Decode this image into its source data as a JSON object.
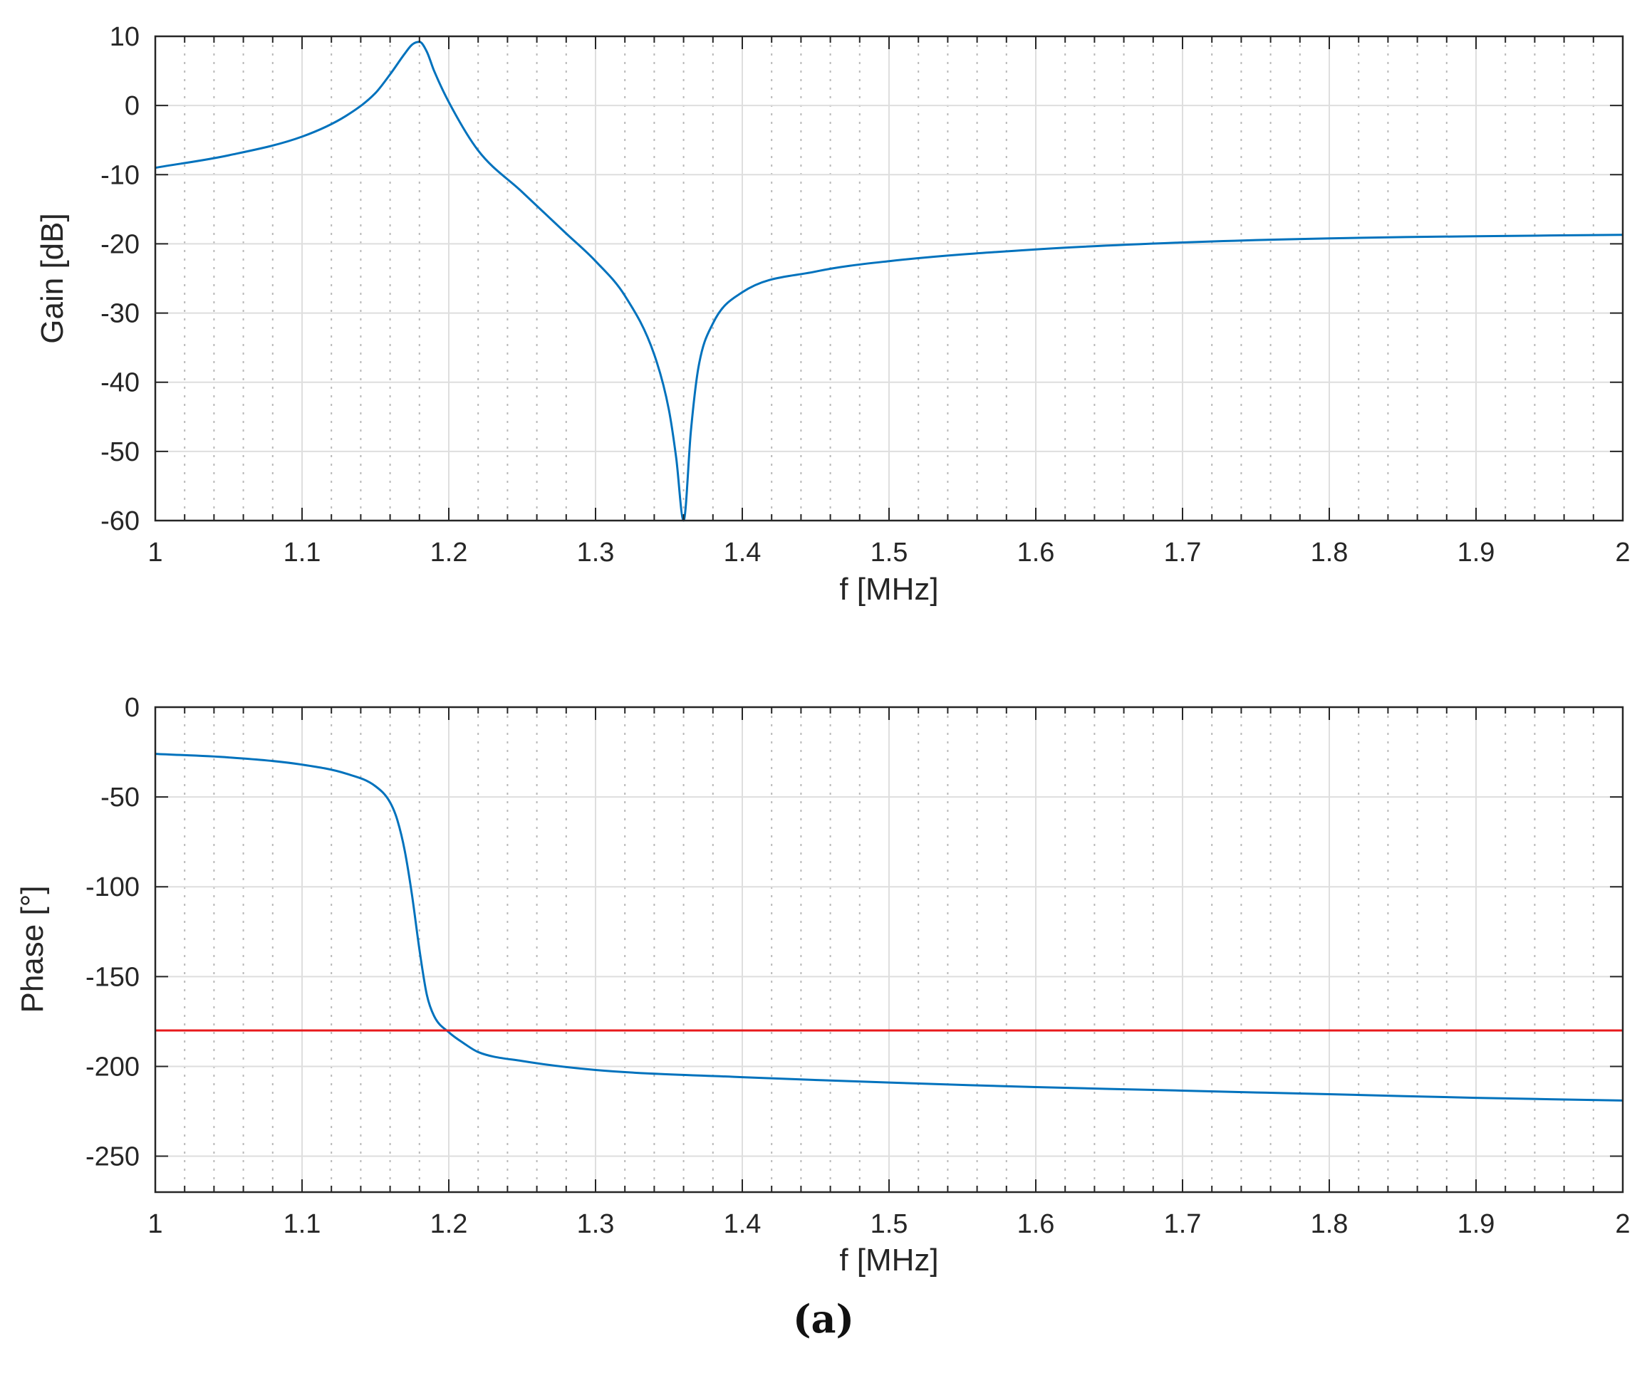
{
  "caption": "(a)",
  "colors": {
    "curve": "#0072bd",
    "reference": "#e8191c",
    "major_grid": "#dedede",
    "minor_grid": "#b8b8b8",
    "axes": "#262626"
  },
  "chart_data": [
    {
      "type": "line",
      "xlabel": "f [MHz]",
      "ylabel": "Gain [dB]",
      "xlim": [
        1,
        2
      ],
      "ylim": [
        -60,
        10
      ],
      "x_ticks": [
        "1",
        "1.1",
        "1.2",
        "1.3",
        "1.4",
        "1.5",
        "1.6",
        "1.7",
        "1.8",
        "1.9",
        "2"
      ],
      "y_ticks": [
        "10",
        "0",
        "-10",
        "-20",
        "-30",
        "-40",
        "-50",
        "-60"
      ],
      "grid": true,
      "minor_grid_x": true,
      "series": [
        {
          "color": "#0072bd",
          "x": [
            1.0,
            1.05,
            1.1,
            1.13,
            1.15,
            1.16,
            1.17,
            1.175,
            1.18,
            1.185,
            1.19,
            1.2,
            1.22,
            1.25,
            1.28,
            1.3,
            1.32,
            1.34,
            1.35,
            1.355,
            1.36,
            1.365,
            1.37,
            1.38,
            1.4,
            1.45,
            1.5,
            1.6,
            1.7,
            1.8,
            1.9,
            2.0
          ],
          "y": [
            -9,
            -7.2,
            -4.5,
            -1.5,
            1.8,
            4.5,
            7.5,
            8.8,
            9.2,
            7.8,
            5.0,
            0.5,
            -6.5,
            -12.5,
            -18.5,
            -22.5,
            -27.5,
            -36,
            -44,
            -51,
            -60,
            -47,
            -38,
            -31.5,
            -27,
            -24,
            -22.5,
            -20.8,
            -19.8,
            -19.2,
            -18.9,
            -18.7
          ]
        }
      ]
    },
    {
      "type": "line",
      "xlabel": "f [MHz]",
      "ylabel": "Phase [°]",
      "xlim": [
        1,
        2
      ],
      "ylim": [
        -270,
        0
      ],
      "x_ticks": [
        "1",
        "1.1",
        "1.2",
        "1.3",
        "1.4",
        "1.5",
        "1.6",
        "1.7",
        "1.8",
        "1.9",
        "2"
      ],
      "y_ticks": [
        "0",
        "-50",
        "-100",
        "-150",
        "-200",
        "-250"
      ],
      "grid": true,
      "minor_grid_x": true,
      "series": [
        {
          "color": "#0072bd",
          "x": [
            1.0,
            1.05,
            1.1,
            1.13,
            1.15,
            1.16,
            1.165,
            1.17,
            1.175,
            1.18,
            1.185,
            1.19,
            1.2,
            1.21,
            1.22,
            1.25,
            1.3,
            1.4,
            1.5,
            1.6,
            1.7,
            1.8,
            1.9,
            2.0
          ],
          "y": [
            -26,
            -28,
            -32,
            -37,
            -44,
            -53,
            -63,
            -80,
            -105,
            -135,
            -160,
            -172,
            -181,
            -187,
            -192,
            -197,
            -202,
            -206,
            -209,
            -211.5,
            -213.5,
            -215.5,
            -217.5,
            -219
          ]
        },
        {
          "color": "#e8191c",
          "x": [
            1.0,
            2.0
          ],
          "y": [
            -180,
            -180
          ]
        }
      ]
    }
  ]
}
